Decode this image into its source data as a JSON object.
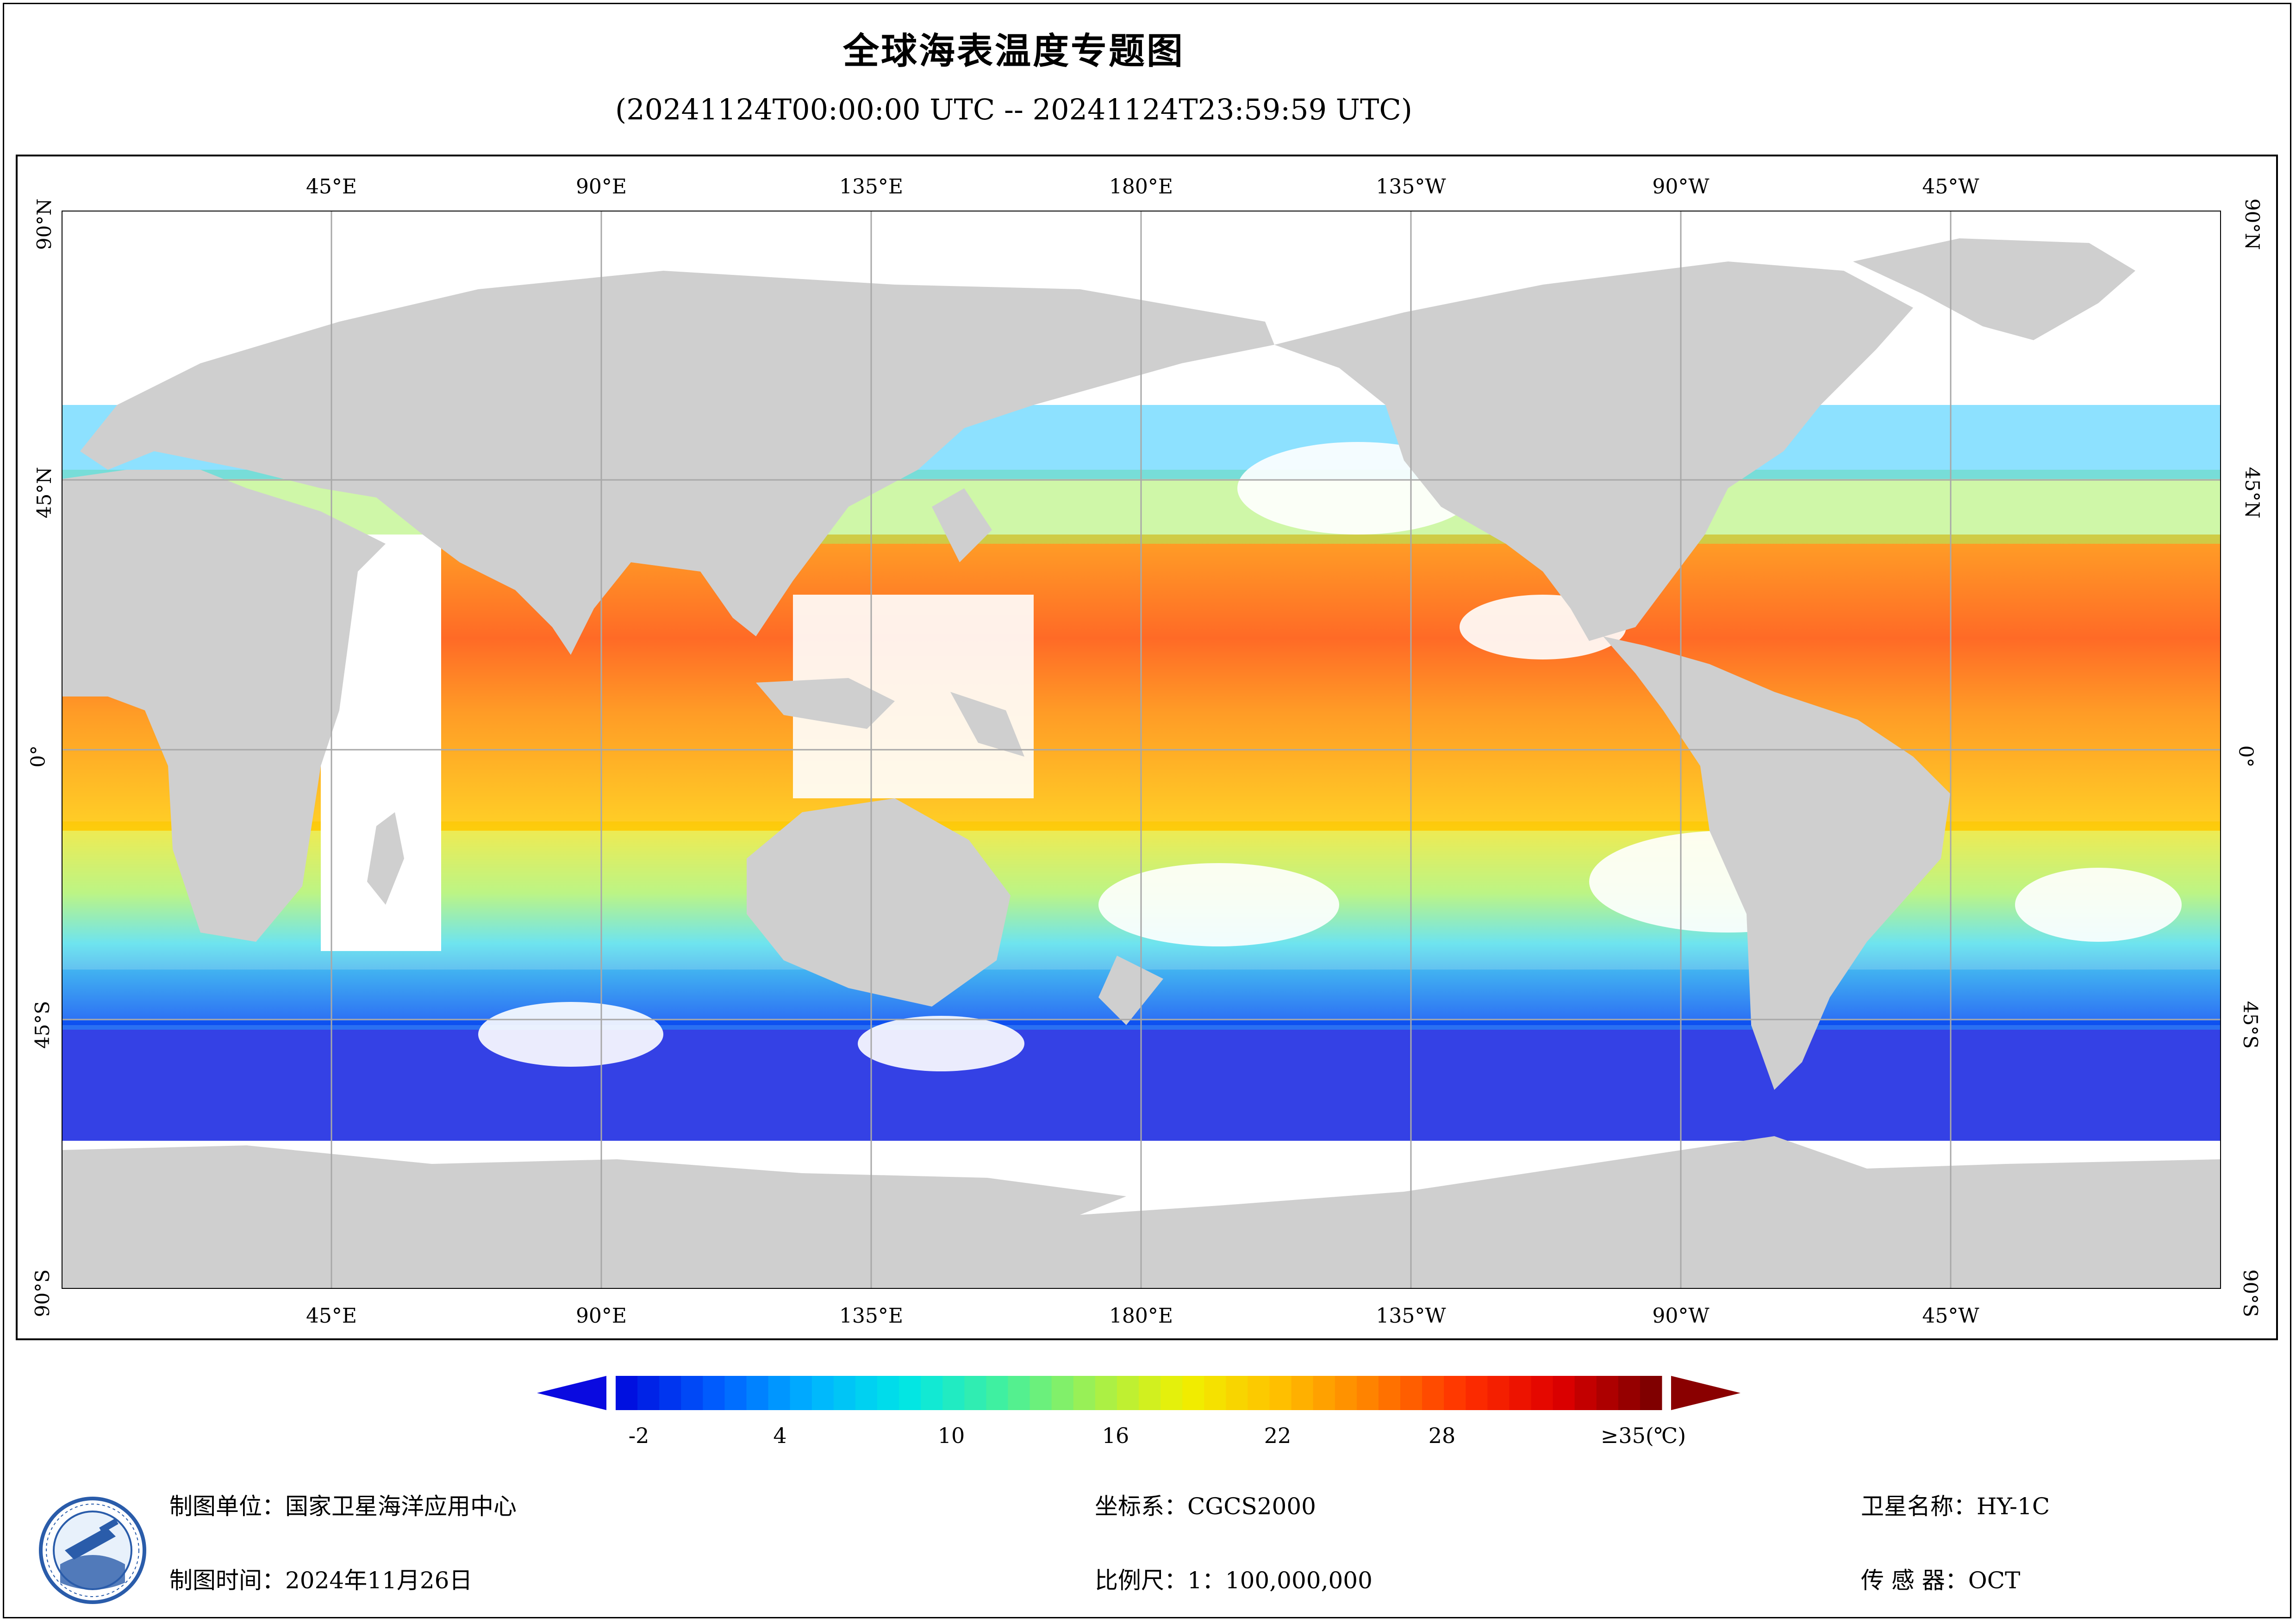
{
  "header": {
    "title": "全球海表温度专题图",
    "time_range": "(20241124T00:00:00 UTC -- 20241124T23:59:59 UTC)"
  },
  "map": {
    "top_lon_labels": [
      "45°E",
      "90°E",
      "135°E",
      "180°E",
      "135°W",
      "90°W",
      "45°W"
    ],
    "bottom_lon_labels": [
      "45°E",
      "90°E",
      "135°E",
      "180°E",
      "135°W",
      "90°W",
      "45°W"
    ],
    "lat_labels": [
      "90°N",
      "45°N",
      "0°",
      "45°S",
      "90°S"
    ],
    "colors": {
      "land": "#cfcfcf",
      "nodata": "#ffffff",
      "grid": "#a8a8a8"
    }
  },
  "colorbar": {
    "tick_labels": [
      "-2",
      "4",
      "10",
      "16",
      "22",
      "28",
      "≥35(℃)"
    ],
    "colors": [
      "#0010e0",
      "#0060ff",
      "#00b4ff",
      "#00e6e6",
      "#40f0a0",
      "#a0f050",
      "#f0f000",
      "#ffc000",
      "#ff8000",
      "#ff3000",
      "#e00000",
      "#800000"
    ]
  },
  "footer": {
    "org": "制图单位：国家卫星海洋应用中心",
    "date": "制图时间：2024年11月26日",
    "crs": "坐标系：CGCS2000",
    "scale": "比例尺：1：100,000,000",
    "satellite": "卫星名称：HY-1C",
    "sensor": "传 感 器：OCT"
  }
}
